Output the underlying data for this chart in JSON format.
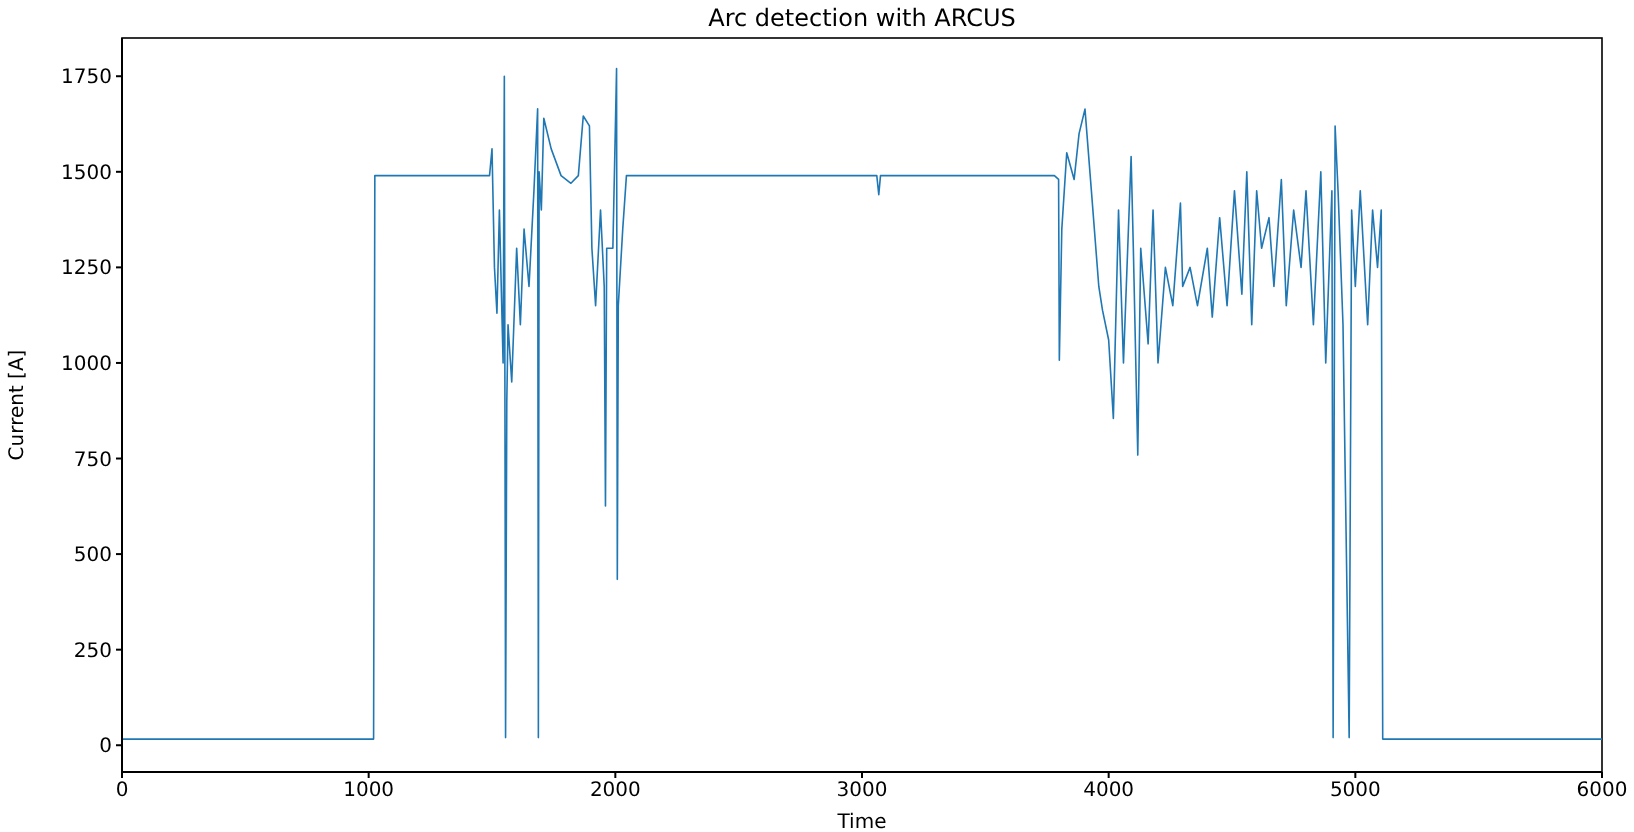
{
  "chart_data": {
    "type": "line",
    "title": "Arc detection with ARCUS",
    "xlabel": "Time",
    "ylabel": "Current [A]",
    "x": [
      0,
      1020,
      1025,
      1490,
      1500,
      1510,
      1520,
      1530,
      1545,
      1550,
      1555,
      1560,
      1565,
      1580,
      1600,
      1615,
      1630,
      1650,
      1670,
      1685,
      1688,
      1691,
      1700,
      1710,
      1740,
      1780,
      1820,
      1850,
      1870,
      1895,
      1905,
      1920,
      1940,
      1955,
      1960,
      1965,
      1990,
      2005,
      2008,
      2012,
      2030,
      2045,
      2050,
      3060,
      3068,
      3075,
      3780,
      3797,
      3800,
      3810,
      3830,
      3860,
      3880,
      3904,
      3930,
      3960,
      3975,
      4000,
      4019,
      4040,
      4060,
      4091,
      4100,
      4118,
      4130,
      4160,
      4180,
      4200,
      4230,
      4260,
      4291,
      4300,
      4330,
      4360,
      4400,
      4420,
      4450,
      4480,
      4510,
      4540,
      4560,
      4580,
      4600,
      4620,
      4650,
      4670,
      4700,
      4720,
      4750,
      4780,
      4800,
      4830,
      4860,
      4880,
      4905,
      4910,
      4918,
      4930,
      4950,
      4960,
      4975,
      4985,
      5000,
      5020,
      5050,
      5070,
      5090,
      5105,
      5111,
      5115,
      6000
    ],
    "series": [
      {
        "color": "#1f77b4",
        "values": [
          16,
          16,
          1490,
          1490,
          1560,
          1250,
          1130,
          1400,
          1000,
          1750,
          20,
          900,
          1100,
          950,
          1300,
          1100,
          1350,
          1200,
          1450,
          1665,
          20,
          1500,
          1400,
          1640,
          1560,
          1490,
          1470,
          1490,
          1646,
          1620,
          1300,
          1150,
          1400,
          1200,
          626,
          1300,
          1300,
          1770,
          434,
          1150,
          1350,
          1490,
          1490,
          1490,
          1440,
          1490,
          1490,
          1480,
          1007,
          1350,
          1550,
          1480,
          1600,
          1664,
          1450,
          1200,
          1138,
          1060,
          855,
          1400,
          1000,
          1540,
          1300,
          759,
          1300,
          1050,
          1400,
          1000,
          1250,
          1150,
          1418,
          1200,
          1250,
          1150,
          1300,
          1120,
          1380,
          1150,
          1450,
          1180,
          1500,
          1100,
          1450,
          1300,
          1380,
          1200,
          1480,
          1150,
          1400,
          1250,
          1450,
          1100,
          1500,
          1000,
          1450,
          20,
          1620,
          1450,
          1100,
          664,
          20,
          1400,
          1200,
          1450,
          1100,
          1400,
          1250,
          1400,
          16,
          16,
          16
        ]
      }
    ],
    "xlim": [
      0,
      6000
    ],
    "xticks": [
      0,
      1000,
      2000,
      3000,
      4000,
      5000,
      6000
    ],
    "ylim": [
      -70,
      1850
    ],
    "yticks": [
      0,
      250,
      500,
      750,
      1000,
      1250,
      1500,
      1750
    ],
    "grid": false,
    "legend": false,
    "marker": "none",
    "line_style": "solid"
  }
}
